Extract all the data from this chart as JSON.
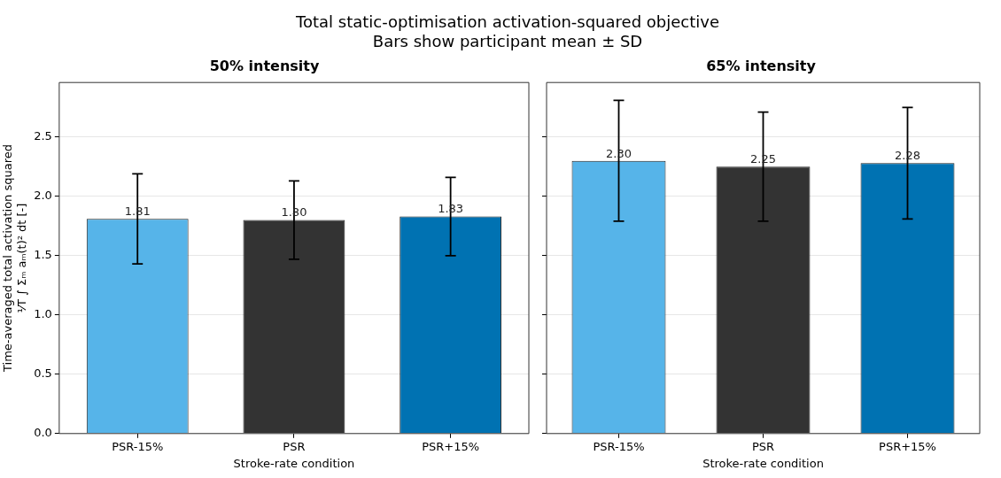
{
  "chart_data": [
    {
      "type": "other",
      "title": "Total static-optimisation activation-squared objective",
      "subtitle": "Bars show participant mean ± SD"
    },
    {
      "type": "bar",
      "title": "50% intensity",
      "xlabel": "Stroke-rate condition",
      "ylabel": "Time-averaged total activation squared\n¹⁄T ∫ Σₘ aₘ(t)² dt [-]",
      "categories": [
        "PSR-15%",
        "PSR",
        "PSR+15%"
      ],
      "values": [
        1.81,
        1.8,
        1.83
      ],
      "errors": [
        0.38,
        0.33,
        0.33
      ],
      "value_labels": [
        "1.81",
        "1.80",
        "1.83"
      ],
      "colors": [
        "#56b4e9",
        "#333333",
        "#0072b2"
      ],
      "ylim": [
        0,
        2.96
      ],
      "yticks": [
        {
          "value": 0,
          "label": "0.0"
        },
        {
          "value": 0.5,
          "label": "0.5"
        },
        {
          "value": 1,
          "label": "1.0"
        },
        {
          "value": 1.5,
          "label": "1.5"
        },
        {
          "value": 2,
          "label": "2.0"
        },
        {
          "value": 2.5,
          "label": "2.5"
        }
      ],
      "grid": "y"
    },
    {
      "type": "bar",
      "title": "65% intensity",
      "xlabel": "Stroke-rate condition",
      "categories": [
        "PSR-15%",
        "PSR",
        "PSR+15%"
      ],
      "values": [
        2.3,
        2.25,
        2.28
      ],
      "errors": [
        0.51,
        0.46,
        0.47
      ],
      "value_labels": [
        "2.30",
        "2.25",
        "2.28"
      ],
      "colors": [
        "#56b4e9",
        "#333333",
        "#0072b2"
      ],
      "ylim": [
        0,
        2.96
      ],
      "yticks": [
        {
          "value": 0,
          "label": null
        },
        {
          "value": 0.5,
          "label": null
        },
        {
          "value": 1,
          "label": null
        },
        {
          "value": 1.5,
          "label": null
        },
        {
          "value": 2,
          "label": null
        },
        {
          "value": 2.5,
          "label": null
        }
      ],
      "grid": "y",
      "tick_labels": "x"
    }
  ]
}
